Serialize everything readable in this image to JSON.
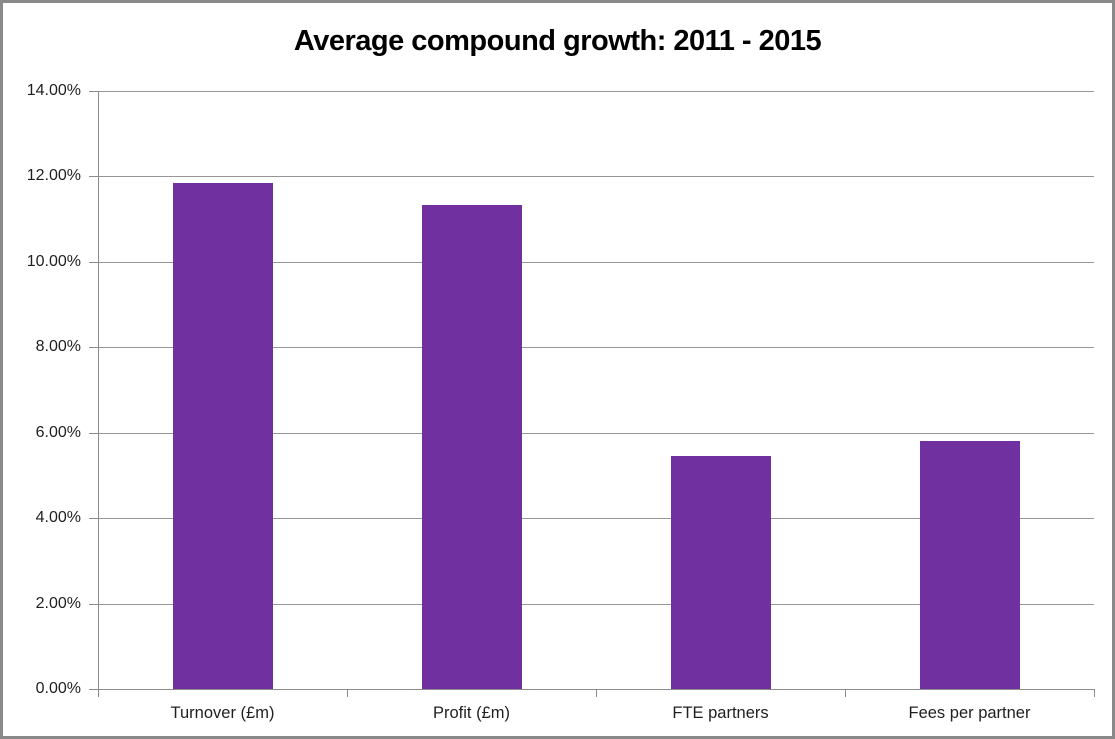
{
  "chart_data": {
    "type": "bar",
    "title": "Average compound growth: 2011 - 2015",
    "categories": [
      "Turnover (£m)",
      "Profit (£m)",
      "FTE partners",
      "Fees per partner"
    ],
    "values": [
      11.85,
      11.33,
      5.45,
      5.8
    ],
    "unit": "%",
    "xlabel": "",
    "ylabel": "",
    "ylim": [
      0,
      14
    ],
    "ytick_step": 2,
    "ytick_labels": [
      "0.00%",
      "2.00%",
      "4.00%",
      "6.00%",
      "8.00%",
      "10.00%",
      "12.00%",
      "14.00%"
    ],
    "grid": true,
    "legend": false
  },
  "colors": {
    "bar": "#7030A0",
    "gridline": "#969696",
    "axis": "#8C8C8C",
    "border": "#898989",
    "tick": "#8C8C8C",
    "label_text": "#1F1F1F",
    "title_text": "#000000",
    "background": "#FFFFFF"
  }
}
